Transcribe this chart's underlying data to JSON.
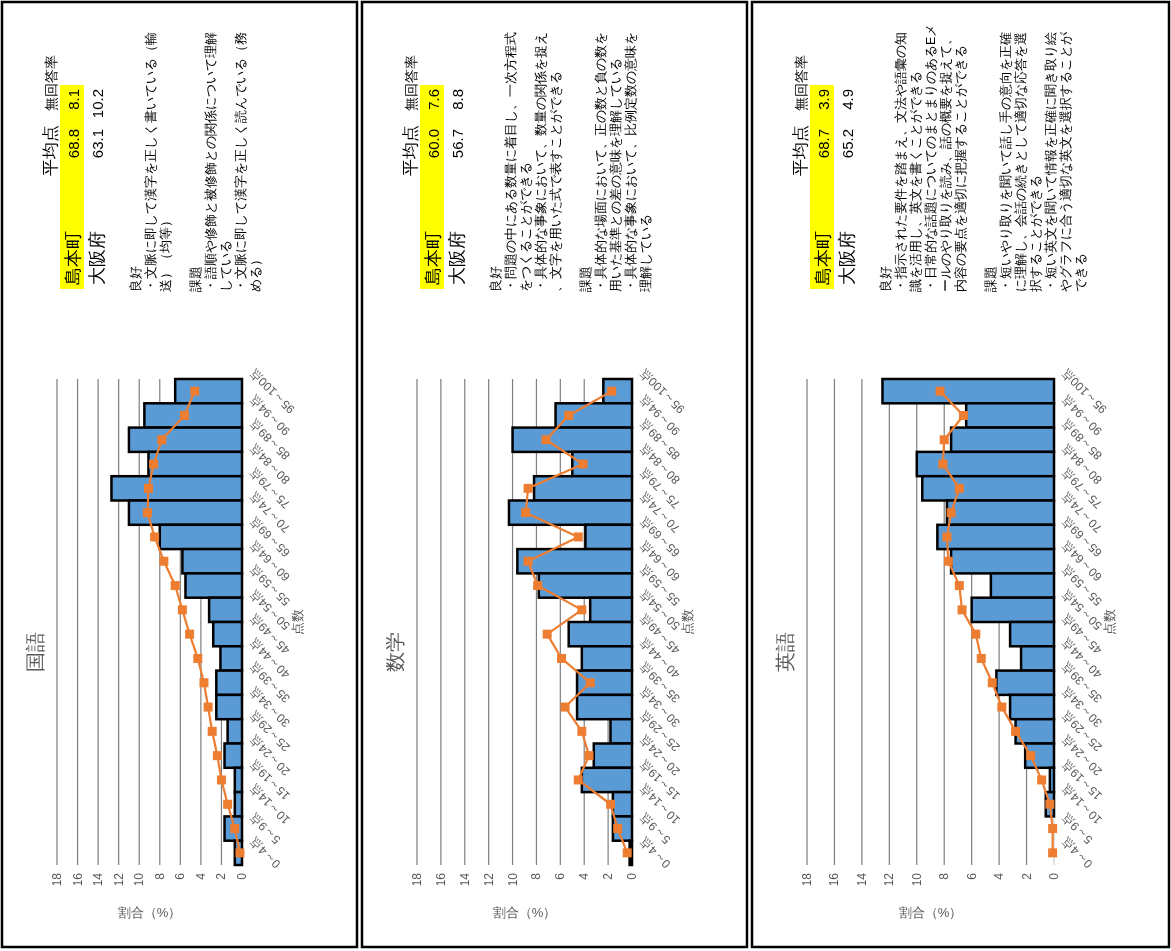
{
  "chart_data": [
    {
      "type": "bar",
      "orientation": "horizontal",
      "title": "国語",
      "ylabel": "点数",
      "xlabel": "割合（%）",
      "categories": [
        "95～100点",
        "90～94点",
        "85～89点",
        "80～84点",
        "75～79点",
        "70～74点",
        "65～69点",
        "60～64点",
        "55～59点",
        "50～54点",
        "45～49点",
        "40～44点",
        "35～39点",
        "30～34点",
        "25～29点",
        "20～24点",
        "15～19点",
        "10～14点",
        "5～9点",
        "0～4点"
      ],
      "series": [
        {
          "type": "bar",
          "color": "#5b9bd5",
          "values": [
            6.5,
            9.5,
            11.0,
            9.1,
            12.7,
            11.0,
            8.0,
            5.8,
            5.5,
            3.2,
            2.8,
            2.1,
            2.5,
            2.5,
            1.4,
            1.7,
            0.7,
            0.7,
            1.7,
            0.7
          ]
        },
        {
          "type": "line",
          "color": "#ed7d31",
          "marker": "square",
          "values": [
            4.6,
            5.6,
            7.8,
            8.6,
            9.1,
            9.2,
            8.5,
            7.6,
            6.5,
            5.8,
            5.1,
            4.3,
            3.7,
            3.3,
            2.9,
            2.4,
            2.0,
            1.4,
            0.7,
            0.2
          ]
        }
      ],
      "xlim": [
        18,
        0
      ],
      "xticks": [
        18,
        16,
        14,
        12,
        10,
        8,
        6,
        4,
        2,
        0
      ],
      "grid": "x",
      "annotations": [
        "平均点",
        "無回答率",
        "島本町",
        "68.8",
        "8.1",
        "大阪府",
        "63.1",
        "10.2",
        "良好",
        "・文脈に即して漢字を正しく書いている（輸送）（均等）",
        "課題",
        "・語順や修飾と被修飾との関係について理解している",
        "・文脈に即して漢字を正しく読んでいる（務める）"
      ]
    },
    {
      "type": "bar",
      "orientation": "horizontal",
      "title": "数学",
      "ylabel": "点数",
      "xlabel": "割合（%）",
      "categories": [
        "95～100点",
        "90～94点",
        "85～89点",
        "80～84点",
        "75～79点",
        "70～74点",
        "65～69点",
        "60～64点",
        "55～59点",
        "50～54点",
        "45～49点",
        "40～44点",
        "35～39点",
        "30～34点",
        "25～29点",
        "20～24点",
        "15～19点",
        "10～14点",
        "5～9点",
        "0～4点"
      ],
      "series": [
        {
          "type": "bar",
          "color": "#5b9bd5",
          "values": [
            2.4,
            6.4,
            10.0,
            5.0,
            8.2,
            10.3,
            3.9,
            9.6,
            7.8,
            3.5,
            5.3,
            4.2,
            4.6,
            4.6,
            1.8,
            3.2,
            4.2,
            1.6,
            1.6,
            0.2
          ]
        },
        {
          "type": "line",
          "color": "#ed7d31",
          "marker": "square",
          "values": [
            1.7,
            5.3,
            7.2,
            4.1,
            8.7,
            8.9,
            4.5,
            8.7,
            7.9,
            4.2,
            7.1,
            5.9,
            3.5,
            5.6,
            4.2,
            3.6,
            4.5,
            1.8,
            1.2,
            0.4
          ]
        }
      ],
      "xlim": [
        18,
        0
      ],
      "xticks": [
        18,
        16,
        14,
        12,
        10,
        8,
        6,
        4,
        2,
        0
      ],
      "grid": "x",
      "annotations": [
        "平均点",
        "無回答率",
        "島本町",
        "60.0",
        "7.6",
        "大阪府",
        "56.7",
        "8.8",
        "良好",
        "・問題の中にある数量に着目し、一次方程式をつくることができる",
        "・具体的な事象において、数量の関係を捉え、文字を用いた式で表すことができる",
        "課題",
        "・具体的な場面において、正の数と負の数を用いた基準との差の意味を理解している",
        "・具体的な事象において、比例定数の意味を理解している"
      ]
    },
    {
      "type": "bar",
      "orientation": "horizontal",
      "title": "英語",
      "ylabel": "点数",
      "xlabel": "割合（%）",
      "categories": [
        "95～100点",
        "90～94点",
        "85～89点",
        "80～84点",
        "75～79点",
        "70～74点",
        "65～69点",
        "60～64点",
        "55～59点",
        "50～54点",
        "45～49点",
        "40～44点",
        "35～39点",
        "30～34点",
        "25～29点",
        "20～24点",
        "15～19点",
        "10～14点",
        "5～9点",
        "0～4点"
      ],
      "series": [
        {
          "type": "bar",
          "color": "#5b9bd5",
          "values": [
            12.5,
            6.4,
            7.5,
            10.0,
            9.6,
            7.8,
            8.5,
            7.5,
            4.6,
            6.0,
            3.2,
            2.4,
            4.2,
            3.2,
            2.8,
            2.1,
            0.3,
            0.6,
            0,
            0
          ]
        },
        {
          "type": "line",
          "color": "#ed7d31",
          "marker": "square",
          "values": [
            8.3,
            6.6,
            8.0,
            8.1,
            6.9,
            7.5,
            7.8,
            7.7,
            6.9,
            6.7,
            5.7,
            5.3,
            4.5,
            3.8,
            2.8,
            1.7,
            0.9,
            0.3,
            0.1,
            0.1
          ]
        }
      ],
      "xlim": [
        18,
        0
      ],
      "xticks": [
        18,
        16,
        14,
        12,
        10,
        8,
        6,
        4,
        2,
        0
      ],
      "grid": "x",
      "annotations": [
        "平均点",
        "無回答率",
        "島本町",
        "68.7",
        "3.9",
        "大阪府",
        "65.2",
        "4.9",
        "良好",
        "・指示された要件を踏まえ、文法や語彙の知識を活用し、英文を書くことができる",
        "・日常的な話題についてのまとまりのあるEメールのやり取りを読み、話の概要を捉えて、内容の要点を適切に把握することができる",
        "課題",
        "・短いやり取りを聞いて話し手の意向を正確に理解し、会話の続きとして適切な応答を選択することができる",
        "・短い英文を聞いて情報を正確に聞き取り絵やグラフに合う適切な英文を選択することができる"
      ]
    }
  ]
}
